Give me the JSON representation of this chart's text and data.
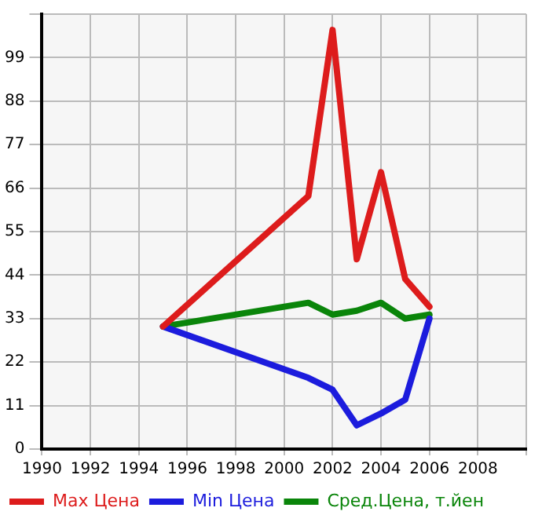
{
  "chart_data": {
    "type": "line",
    "x": [
      1995,
      2001,
      2002,
      2003,
      2004,
      2005,
      2006
    ],
    "series": [
      {
        "name": "Max Цена",
        "color": "#dd1c1c",
        "values": [
          31,
          64,
          106,
          48,
          70,
          43,
          36
        ]
      },
      {
        "name": "Min Цена",
        "color": "#1c1cdd",
        "values": [
          31,
          18,
          15,
          6,
          9,
          12.5,
          33
        ]
      },
      {
        "name": "Сред.Цена, т.йен",
        "color": "#0a850a",
        "values": [
          31,
          37,
          34,
          35,
          37,
          33,
          34
        ]
      }
    ],
    "xlim": [
      1990,
      2010
    ],
    "xticks": [
      1990,
      1992,
      1994,
      1996,
      1998,
      2000,
      2002,
      2004,
      2006,
      2008,
      {
        "value": 2010,
        "label": null
      }
    ],
    "ylim": [
      0,
      110
    ],
    "yticks": [
      0,
      11,
      22,
      33,
      44,
      55,
      66,
      77,
      88,
      99,
      {
        "value": 110,
        "label": null
      }
    ],
    "grid": true,
    "legend": "bottom",
    "marker": "none",
    "line_style": "solid"
  }
}
